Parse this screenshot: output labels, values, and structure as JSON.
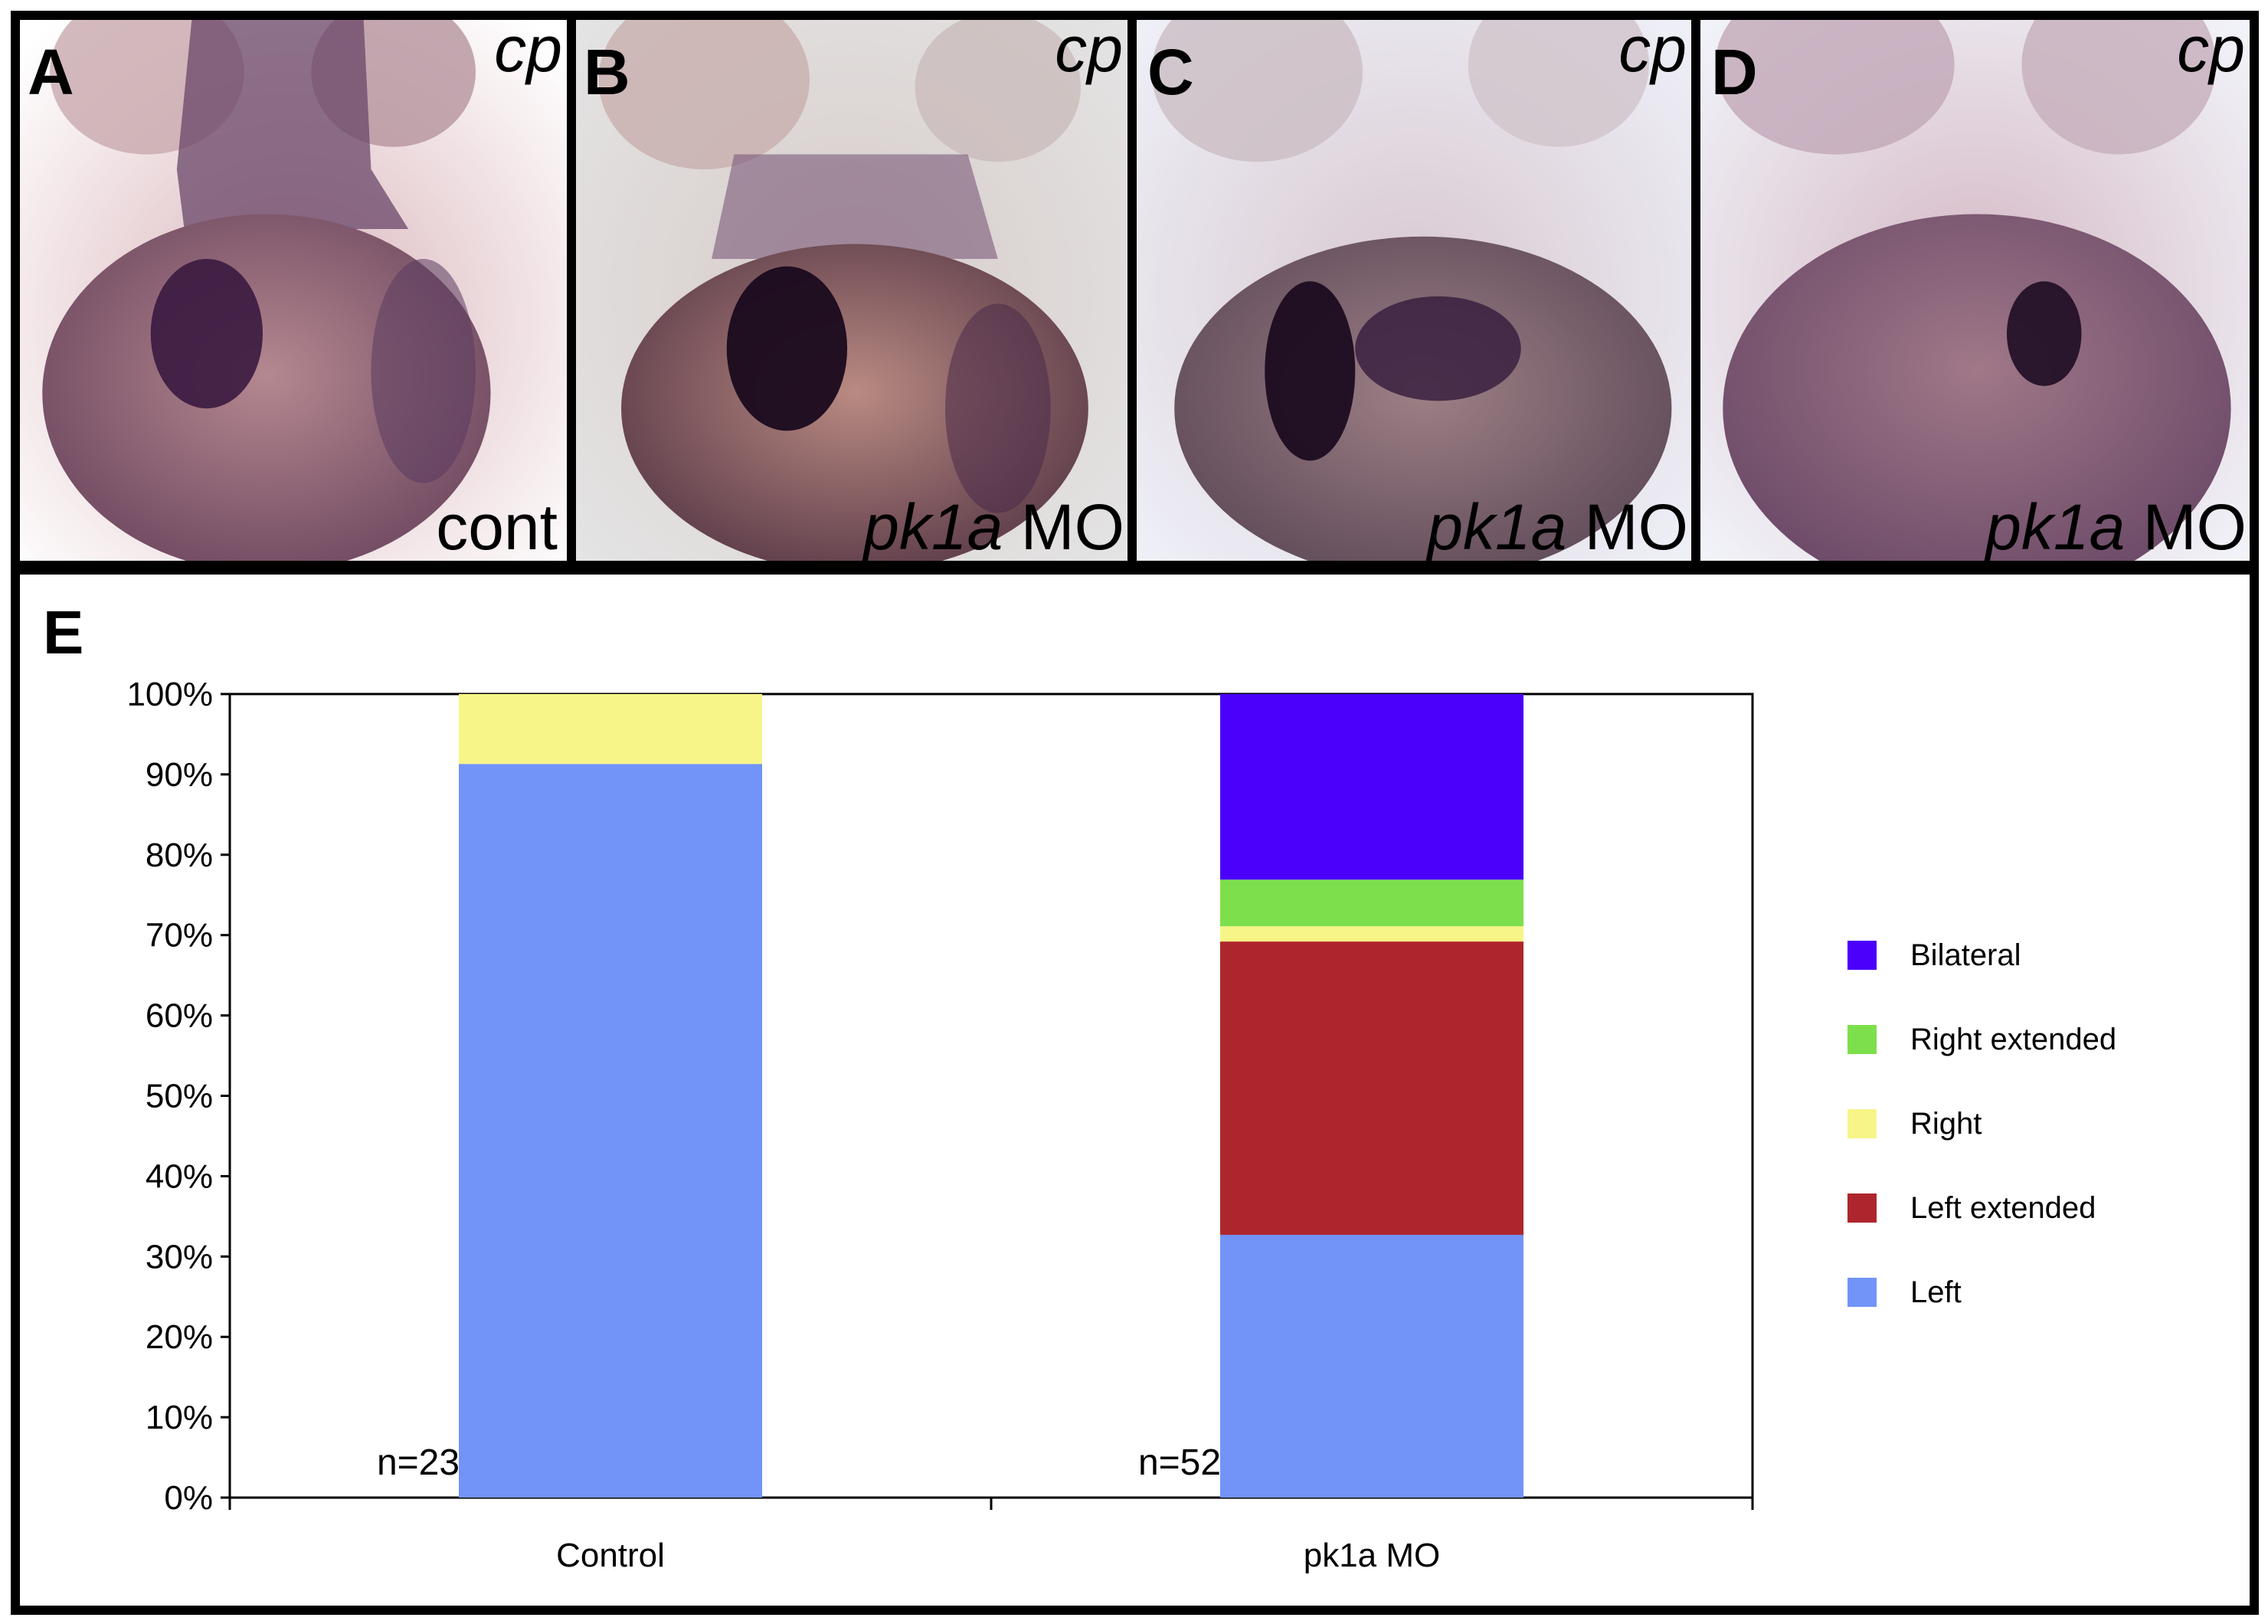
{
  "panels": [
    {
      "letter": "A",
      "marker": "cp",
      "condition_italic": "",
      "condition_text": "cont"
    },
    {
      "letter": "B",
      "marker": "cp",
      "condition_italic": "pk1a",
      "condition_text": " MO"
    },
    {
      "letter": "C",
      "marker": "cp",
      "condition_italic": "pk1a",
      "condition_text": " MO"
    },
    {
      "letter": "D",
      "marker": "cp",
      "condition_italic": "pk1a",
      "condition_text": " MO"
    }
  ],
  "panel_e_letter": "E",
  "chart_data": {
    "type": "bar",
    "stacked": true,
    "categories": [
      "Control",
      "pk1a MO"
    ],
    "counts": [
      "n=23",
      "n=52"
    ],
    "ylim": [
      0,
      100
    ],
    "yticks": [
      "0%",
      "10%",
      "20%",
      "30%",
      "40%",
      "50%",
      "60%",
      "70%",
      "80%",
      "90%",
      "100%"
    ],
    "xlabel": "",
    "ylabel": "",
    "legend_position": "right",
    "series": [
      {
        "name": "Left",
        "color": "#7293f8",
        "values": [
          91.3,
          32.7
        ]
      },
      {
        "name": "Left extended",
        "color": "#ae262d",
        "values": [
          0,
          36.5
        ]
      },
      {
        "name": "Right",
        "color": "#f7f587",
        "values": [
          8.7,
          1.9
        ]
      },
      {
        "name": "Right extended",
        "color": "#7ddf4c",
        "values": [
          0,
          5.8
        ]
      },
      {
        "name": "Bilateral",
        "color": "#4a00fb",
        "values": [
          0,
          23.1
        ]
      }
    ],
    "legend_order": [
      "Bilateral",
      "Right extended",
      "Right",
      "Left extended",
      "Left"
    ]
  }
}
